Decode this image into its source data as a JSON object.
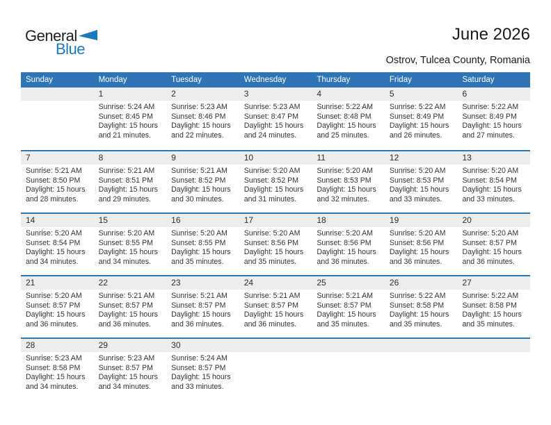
{
  "logo": {
    "general": "General",
    "blue": "Blue"
  },
  "header": {
    "title": "June 2026",
    "subtitle": "Ostrov, Tulcea County, Romania"
  },
  "colors": {
    "header_bg": "#2e75b6",
    "week_separator": "#2e75b6",
    "number_band_bg": "#ededed",
    "brand_blue": "#1b79be"
  },
  "weekdays": [
    "Sunday",
    "Monday",
    "Tuesday",
    "Wednesday",
    "Thursday",
    "Friday",
    "Saturday"
  ],
  "weeks": [
    [
      {
        "day": "",
        "sunrise": "",
        "sunset": "",
        "daylight": ""
      },
      {
        "day": "1",
        "sunrise": "Sunrise: 5:24 AM",
        "sunset": "Sunset: 8:45 PM",
        "daylight": "Daylight: 15 hours and 21 minutes."
      },
      {
        "day": "2",
        "sunrise": "Sunrise: 5:23 AM",
        "sunset": "Sunset: 8:46 PM",
        "daylight": "Daylight: 15 hours and 22 minutes."
      },
      {
        "day": "3",
        "sunrise": "Sunrise: 5:23 AM",
        "sunset": "Sunset: 8:47 PM",
        "daylight": "Daylight: 15 hours and 24 minutes."
      },
      {
        "day": "4",
        "sunrise": "Sunrise: 5:22 AM",
        "sunset": "Sunset: 8:48 PM",
        "daylight": "Daylight: 15 hours and 25 minutes."
      },
      {
        "day": "5",
        "sunrise": "Sunrise: 5:22 AM",
        "sunset": "Sunset: 8:49 PM",
        "daylight": "Daylight: 15 hours and 26 minutes."
      },
      {
        "day": "6",
        "sunrise": "Sunrise: 5:22 AM",
        "sunset": "Sunset: 8:49 PM",
        "daylight": "Daylight: 15 hours and 27 minutes."
      }
    ],
    [
      {
        "day": "7",
        "sunrise": "Sunrise: 5:21 AM",
        "sunset": "Sunset: 8:50 PM",
        "daylight": "Daylight: 15 hours and 28 minutes."
      },
      {
        "day": "8",
        "sunrise": "Sunrise: 5:21 AM",
        "sunset": "Sunset: 8:51 PM",
        "daylight": "Daylight: 15 hours and 29 minutes."
      },
      {
        "day": "9",
        "sunrise": "Sunrise: 5:21 AM",
        "sunset": "Sunset: 8:52 PM",
        "daylight": "Daylight: 15 hours and 30 minutes."
      },
      {
        "day": "10",
        "sunrise": "Sunrise: 5:20 AM",
        "sunset": "Sunset: 8:52 PM",
        "daylight": "Daylight: 15 hours and 31 minutes."
      },
      {
        "day": "11",
        "sunrise": "Sunrise: 5:20 AM",
        "sunset": "Sunset: 8:53 PM",
        "daylight": "Daylight: 15 hours and 32 minutes."
      },
      {
        "day": "12",
        "sunrise": "Sunrise: 5:20 AM",
        "sunset": "Sunset: 8:53 PM",
        "daylight": "Daylight: 15 hours and 33 minutes."
      },
      {
        "day": "13",
        "sunrise": "Sunrise: 5:20 AM",
        "sunset": "Sunset: 8:54 PM",
        "daylight": "Daylight: 15 hours and 33 minutes."
      }
    ],
    [
      {
        "day": "14",
        "sunrise": "Sunrise: 5:20 AM",
        "sunset": "Sunset: 8:54 PM",
        "daylight": "Daylight: 15 hours and 34 minutes."
      },
      {
        "day": "15",
        "sunrise": "Sunrise: 5:20 AM",
        "sunset": "Sunset: 8:55 PM",
        "daylight": "Daylight: 15 hours and 34 minutes."
      },
      {
        "day": "16",
        "sunrise": "Sunrise: 5:20 AM",
        "sunset": "Sunset: 8:55 PM",
        "daylight": "Daylight: 15 hours and 35 minutes."
      },
      {
        "day": "17",
        "sunrise": "Sunrise: 5:20 AM",
        "sunset": "Sunset: 8:56 PM",
        "daylight": "Daylight: 15 hours and 35 minutes."
      },
      {
        "day": "18",
        "sunrise": "Sunrise: 5:20 AM",
        "sunset": "Sunset: 8:56 PM",
        "daylight": "Daylight: 15 hours and 36 minutes."
      },
      {
        "day": "19",
        "sunrise": "Sunrise: 5:20 AM",
        "sunset": "Sunset: 8:56 PM",
        "daylight": "Daylight: 15 hours and 36 minutes."
      },
      {
        "day": "20",
        "sunrise": "Sunrise: 5:20 AM",
        "sunset": "Sunset: 8:57 PM",
        "daylight": "Daylight: 15 hours and 36 minutes."
      }
    ],
    [
      {
        "day": "21",
        "sunrise": "Sunrise: 5:20 AM",
        "sunset": "Sunset: 8:57 PM",
        "daylight": "Daylight: 15 hours and 36 minutes."
      },
      {
        "day": "22",
        "sunrise": "Sunrise: 5:21 AM",
        "sunset": "Sunset: 8:57 PM",
        "daylight": "Daylight: 15 hours and 36 minutes."
      },
      {
        "day": "23",
        "sunrise": "Sunrise: 5:21 AM",
        "sunset": "Sunset: 8:57 PM",
        "daylight": "Daylight: 15 hours and 36 minutes."
      },
      {
        "day": "24",
        "sunrise": "Sunrise: 5:21 AM",
        "sunset": "Sunset: 8:57 PM",
        "daylight": "Daylight: 15 hours and 36 minutes."
      },
      {
        "day": "25",
        "sunrise": "Sunrise: 5:21 AM",
        "sunset": "Sunset: 8:57 PM",
        "daylight": "Daylight: 15 hours and 35 minutes."
      },
      {
        "day": "26",
        "sunrise": "Sunrise: 5:22 AM",
        "sunset": "Sunset: 8:58 PM",
        "daylight": "Daylight: 15 hours and 35 minutes."
      },
      {
        "day": "27",
        "sunrise": "Sunrise: 5:22 AM",
        "sunset": "Sunset: 8:58 PM",
        "daylight": "Daylight: 15 hours and 35 minutes."
      }
    ],
    [
      {
        "day": "28",
        "sunrise": "Sunrise: 5:23 AM",
        "sunset": "Sunset: 8:58 PM",
        "daylight": "Daylight: 15 hours and 34 minutes."
      },
      {
        "day": "29",
        "sunrise": "Sunrise: 5:23 AM",
        "sunset": "Sunset: 8:57 PM",
        "daylight": "Daylight: 15 hours and 34 minutes."
      },
      {
        "day": "30",
        "sunrise": "Sunrise: 5:24 AM",
        "sunset": "Sunset: 8:57 PM",
        "daylight": "Daylight: 15 hours and 33 minutes."
      },
      {
        "day": "",
        "sunrise": "",
        "sunset": "",
        "daylight": ""
      },
      {
        "day": "",
        "sunrise": "",
        "sunset": "",
        "daylight": ""
      },
      {
        "day": "",
        "sunrise": "",
        "sunset": "",
        "daylight": ""
      },
      {
        "day": "",
        "sunrise": "",
        "sunset": "",
        "daylight": ""
      }
    ]
  ]
}
